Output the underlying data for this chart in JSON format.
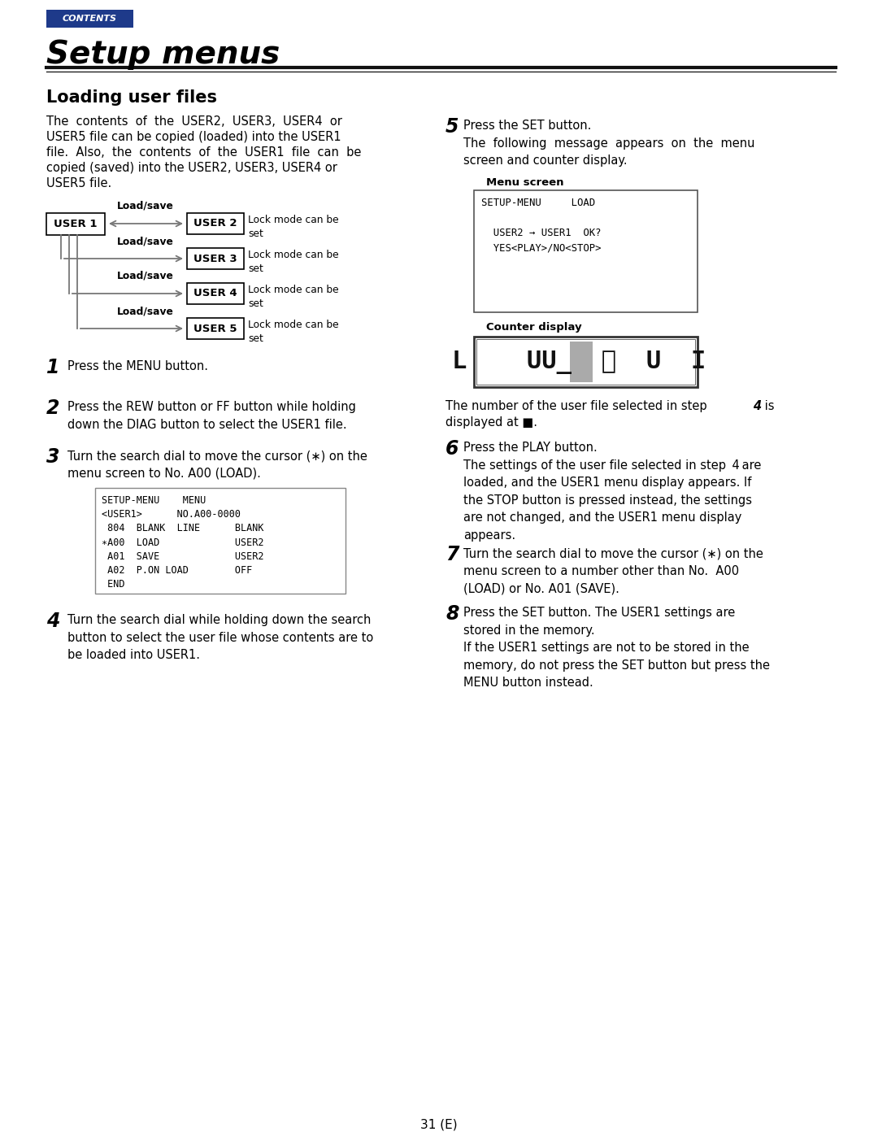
{
  "page_bg": "#ffffff",
  "contents_label": "CONTENTS",
  "contents_bg": "#1e3a8a",
  "contents_text_color": "#ffffff",
  "title": "Setup menus",
  "section_title": "Loading user files",
  "body_text1_line1": "The  contents  of  the  USER2,  USER3,  USER4  or",
  "body_text1_line2": "USER5 file can be copied (loaded) into the USER1",
  "body_text1_line3": "file.  Also,  the  contents  of  the  USER1  file  can  be",
  "body_text1_line4": "copied (saved) into the USER2, USER3, USER4 or",
  "body_text1_line5": "USER5 file.",
  "page_number": "31 (E)",
  "menu_screen_label": "Menu screen",
  "counter_display_label": "Counter display",
  "note_step4_bold": "4",
  "note_text": "The number of the user file selected in step  is\ndisplayed at ■.",
  "text_color": "#000000",
  "gray_arrow": "#777777"
}
